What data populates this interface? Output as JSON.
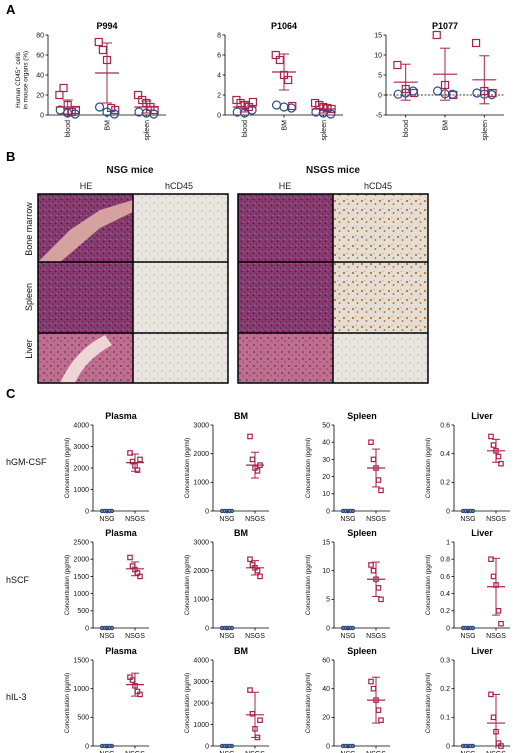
{
  "panels": {
    "A": "A",
    "B": "B",
    "C": "C"
  },
  "colors": {
    "red": "#a8234a",
    "blue": "#2e4a86",
    "he": "#8a3c6e",
    "ihc": "#e6e2dc",
    "dab": "#b07a3a"
  },
  "panel_a_ylabel": "Human CD45⁺ cells\nin mouse organs (%)",
  "panel_c_ylabel": "Concentration (pg/ml)",
  "histology": {
    "groups": [
      "NSG mice",
      "NSGS mice"
    ],
    "stains": [
      "HE",
      "hCD45"
    ],
    "rows": [
      "Bone marrow",
      "Spleen",
      "Liver"
    ]
  },
  "cytokines": [
    "hGM-CSF",
    "hSCF",
    "hIL-3"
  ],
  "chart_data": [
    {
      "type": "scatter",
      "title": "P994",
      "categories": [
        "blood",
        "BM",
        "spleen"
      ],
      "ylim": [
        0,
        80
      ],
      "yticks": [
        0,
        20,
        40,
        60,
        80
      ],
      "series": [
        {
          "marker": "square",
          "values": [
            [
              20,
              27,
              10,
              3,
              5
            ],
            [
              73,
              65,
              55,
              7,
              5
            ],
            [
              20,
              15,
              12,
              8,
              5
            ]
          ]
        },
        {
          "marker": "circle",
          "values": [
            [
              5,
              2,
              1
            ],
            [
              8,
              3,
              1
            ],
            [
              3,
              2,
              1
            ]
          ]
        }
      ],
      "means": [
        8,
        42,
        8
      ],
      "sds": [
        7,
        30,
        6
      ]
    },
    {
      "type": "scatter",
      "title": "P1064",
      "categories": [
        "blood",
        "BM",
        "spleen"
      ],
      "ylim": [
        0,
        8
      ],
      "yticks": [
        0,
        2,
        4,
        6,
        8
      ],
      "series": [
        {
          "marker": "square",
          "values": [
            [
              1.5,
              1.2,
              1.0,
              0.8,
              1.3
            ],
            [
              6,
              5.5,
              4,
              3.5,
              0.9
            ],
            [
              1.2,
              1.0,
              0.8,
              0.7,
              0.6
            ]
          ]
        },
        {
          "marker": "circle",
          "values": [
            [
              0.3,
              0.2,
              0.5
            ],
            [
              1.0,
              0.8,
              0.7
            ],
            [
              0.3,
              0.2,
              0.1
            ]
          ]
        }
      ],
      "means": [
        0.8,
        4.3,
        0.6
      ],
      "sds": [
        0.5,
        1.8,
        0.4
      ]
    },
    {
      "type": "scatter",
      "title": "P1077",
      "categories": [
        "blood",
        "BM",
        "spleen"
      ],
      "ylim": [
        -5,
        15
      ],
      "yticks": [
        -5,
        0,
        5,
        10,
        15
      ],
      "dashed_zero": true,
      "series": [
        {
          "marker": "square",
          "values": [
            [
              7.5,
              1.5,
              0.5
            ],
            [
              15,
              2.5,
              0
            ],
            [
              13,
              1,
              0.5
            ]
          ]
        },
        {
          "marker": "circle",
          "values": [
            [
              0.2,
              0.5,
              1
            ],
            [
              1,
              0.3,
              0.2
            ],
            [
              0.5,
              0.2,
              0.1
            ]
          ]
        }
      ],
      "means": [
        3.2,
        5.2,
        3.8
      ],
      "sds": [
        4.5,
        6.5,
        6.0
      ]
    },
    {
      "type": "scatter",
      "title": "Plasma",
      "categories": [
        "NSG",
        "NSGS"
      ],
      "ylim": [
        0,
        4000
      ],
      "yticks": [
        0,
        1000,
        2000,
        3000,
        4000
      ],
      "nsg": [
        0,
        0,
        0,
        0,
        0
      ],
      "nsgs": [
        2700,
        2300,
        2100,
        1900,
        2400
      ],
      "means": [
        0,
        2250
      ],
      "sds": [
        0,
        400
      ]
    },
    {
      "type": "scatter",
      "title": "BM",
      "categories": [
        "NSG",
        "NSGS"
      ],
      "ylim": [
        0,
        3000
      ],
      "yticks": [
        0,
        1000,
        2000,
        3000
      ],
      "nsg": [
        0,
        0,
        0,
        0,
        0
      ],
      "nsgs": [
        2600,
        1800,
        1500,
        1400,
        1600
      ],
      "means": [
        0,
        1600
      ],
      "sds": [
        0,
        450
      ]
    },
    {
      "type": "scatter",
      "title": "Spleen",
      "categories": [
        "NSG",
        "NSGS"
      ],
      "ylim": [
        0,
        50
      ],
      "yticks": [
        0,
        10,
        20,
        30,
        40,
        50
      ],
      "nsg": [
        0,
        0,
        0,
        0,
        0
      ],
      "nsgs": [
        40,
        30,
        25,
        18,
        12
      ],
      "means": [
        0,
        25
      ],
      "sds": [
        0,
        11
      ]
    },
    {
      "type": "scatter",
      "title": "Liver",
      "categories": [
        "NSG",
        "NSGS"
      ],
      "ylim": [
        0,
        0.6
      ],
      "yticks": [
        0,
        0.2,
        0.4,
        0.6
      ],
      "nsg": [
        0,
        0,
        0,
        0,
        0
      ],
      "nsgs": [
        0.52,
        0.46,
        0.42,
        0.38,
        0.33
      ],
      "means": [
        0,
        0.42
      ],
      "sds": [
        0,
        0.08
      ]
    },
    {
      "type": "scatter",
      "title": "Plasma",
      "categories": [
        "NSG",
        "NSGS"
      ],
      "ylim": [
        0,
        2500
      ],
      "yticks": [
        0,
        500,
        1000,
        1500,
        2000,
        2500
      ],
      "nsg": [
        0,
        0,
        0,
        0,
        0
      ],
      "nsgs": [
        2050,
        1800,
        1700,
        1600,
        1500
      ],
      "means": [
        0,
        1720
      ],
      "sds": [
        0,
        200
      ]
    },
    {
      "type": "scatter",
      "title": "BM",
      "categories": [
        "NSG",
        "NSGS"
      ],
      "ylim": [
        0,
        3000
      ],
      "yticks": [
        0,
        1000,
        2000,
        3000
      ],
      "nsg": [
        0,
        0,
        0,
        0,
        0
      ],
      "nsgs": [
        2400,
        2200,
        2100,
        2000,
        1800
      ],
      "means": [
        0,
        2100
      ],
      "sds": [
        0,
        250
      ]
    },
    {
      "type": "scatter",
      "title": "Spleen",
      "categories": [
        "NSG",
        "NSGS"
      ],
      "ylim": [
        0,
        15
      ],
      "yticks": [
        0,
        5,
        10,
        15
      ],
      "nsg": [
        0,
        0,
        0,
        0,
        0
      ],
      "nsgs": [
        11,
        10,
        8.5,
        7,
        5
      ],
      "means": [
        0,
        8.5
      ],
      "sds": [
        0,
        3
      ]
    },
    {
      "type": "scatter",
      "title": "Liver",
      "categories": [
        "NSG",
        "NSGS"
      ],
      "ylim": [
        0,
        1.0
      ],
      "yticks": [
        0,
        0.2,
        0.4,
        0.6,
        0.8,
        1.0
      ],
      "nsg": [
        0,
        0,
        0,
        0,
        0
      ],
      "nsgs": [
        0.8,
        0.6,
        0.5,
        0.2,
        0.05
      ],
      "means": [
        0,
        0.48
      ],
      "sds": [
        0,
        0.33
      ]
    },
    {
      "type": "scatter",
      "title": "Plasma",
      "categories": [
        "NSG",
        "NSGS"
      ],
      "ylim": [
        0,
        1500
      ],
      "yticks": [
        0,
        500,
        1000,
        1500
      ],
      "nsg": [
        0,
        0,
        0,
        0,
        0
      ],
      "nsgs": [
        1200,
        1150,
        1050,
        950,
        900
      ],
      "means": [
        0,
        1070
      ],
      "sds": [
        0,
        200
      ]
    },
    {
      "type": "scatter",
      "title": "BM",
      "categories": [
        "NSG",
        "NSGS"
      ],
      "ylim": [
        0,
        4000
      ],
      "yticks": [
        0,
        1000,
        2000,
        3000,
        4000
      ],
      "nsg": [
        0,
        0,
        0,
        0,
        0
      ],
      "nsgs": [
        2600,
        1500,
        800,
        400,
        1200
      ],
      "means": [
        0,
        1450
      ],
      "sds": [
        0,
        1050
      ]
    },
    {
      "type": "scatter",
      "title": "Spleen",
      "categories": [
        "NSG",
        "NSGS"
      ],
      "ylim": [
        0,
        60
      ],
      "yticks": [
        0,
        20,
        40,
        60
      ],
      "nsg": [
        0,
        0,
        0,
        0,
        0
      ],
      "nsgs": [
        45,
        40,
        32,
        25,
        18
      ],
      "means": [
        0,
        32
      ],
      "sds": [
        0,
        16
      ]
    },
    {
      "type": "scatter",
      "title": "Liver",
      "categories": [
        "NSG",
        "NSGS"
      ],
      "ylim": [
        0,
        0.3
      ],
      "yticks": [
        0,
        0.1,
        0.2,
        0.3
      ],
      "nsg": [
        0,
        0,
        0,
        0,
        0
      ],
      "nsgs": [
        0.18,
        0.1,
        0.05,
        0.01,
        0.0
      ],
      "means": [
        0,
        0.08
      ],
      "sds": [
        0,
        0.1
      ]
    }
  ]
}
